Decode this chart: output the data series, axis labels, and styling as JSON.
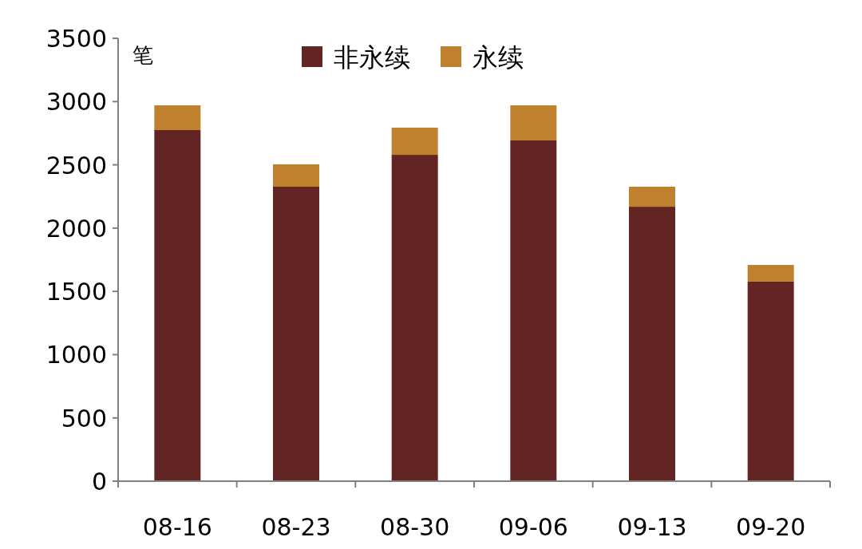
{
  "chart_data": {
    "type": "bar",
    "stacked": true,
    "ylabel": "笔",
    "categories": [
      "08-16",
      "08-23",
      "08-30",
      "09-06",
      "09-13",
      "09-20"
    ],
    "series": [
      {
        "name": "非永续",
        "color": "#632523",
        "values": [
          2775,
          2327,
          2579,
          2693,
          2169,
          1577
        ]
      },
      {
        "name": "永续",
        "color": "#c0812f",
        "values": [
          195,
          177,
          215,
          277,
          158,
          132
        ]
      }
    ],
    "ylim": [
      0,
      3500
    ],
    "yticks": [
      0,
      500,
      1000,
      1500,
      2000,
      2500,
      3000,
      3500
    ],
    "legend": "top",
    "grid": false
  }
}
